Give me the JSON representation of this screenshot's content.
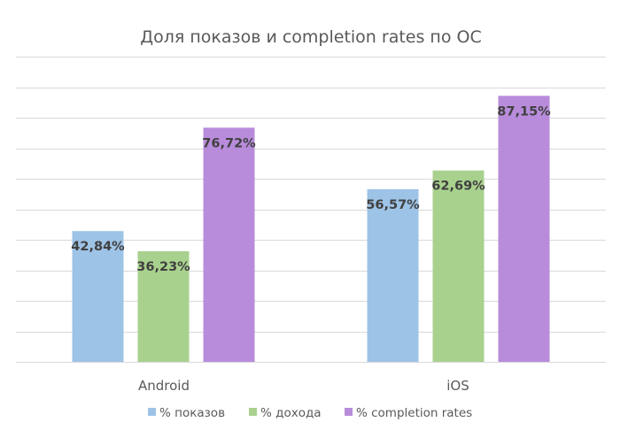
{
  "chart_data": {
    "type": "bar",
    "title": "Доля показов и completion rates по ОС",
    "xlabel": "",
    "ylabel": "",
    "ylim": [
      0,
      100
    ],
    "grid": true,
    "gridline_step": 10,
    "legend_position": "bottom",
    "categories": [
      "Android",
      "iOS"
    ],
    "series": [
      {
        "name": "% показов",
        "color": "#9DC3E6",
        "values": [
          42.84,
          56.57
        ],
        "labels": [
          "42,84%",
          "56,57%"
        ]
      },
      {
        "name": "% дохода",
        "color": "#A9D18E",
        "values": [
          36.23,
          62.69
        ],
        "labels": [
          "36,23%",
          "62,69%"
        ]
      },
      {
        "name": "% completion rates",
        "color": "#B88CDB",
        "values": [
          76.72,
          87.15
        ],
        "labels": [
          "76,72%",
          "87,15%"
        ]
      }
    ]
  }
}
